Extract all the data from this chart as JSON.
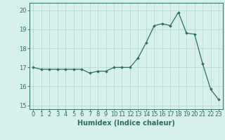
{
  "x": [
    0,
    1,
    2,
    3,
    4,
    5,
    6,
    7,
    8,
    9,
    10,
    11,
    12,
    13,
    14,
    15,
    16,
    17,
    18,
    19,
    20,
    21,
    22,
    23
  ],
  "y": [
    17.0,
    16.9,
    16.9,
    16.9,
    16.9,
    16.9,
    16.9,
    16.7,
    16.8,
    16.8,
    17.0,
    17.0,
    17.0,
    17.5,
    18.3,
    19.2,
    19.3,
    19.2,
    19.9,
    18.8,
    18.75,
    17.2,
    15.85,
    15.3
  ],
  "line_color": "#2d6e63",
  "marker": "D",
  "marker_size": 1.8,
  "bg_color": "#d6f0eb",
  "grid_color": "#b0d8d0",
  "xlabel": "Humidex (Indice chaleur)",
  "xlabel_fontsize": 7,
  "tick_fontsize": 6,
  "ylim": [
    14.8,
    20.4
  ],
  "xlim": [
    -0.5,
    23.5
  ],
  "yticks": [
    15,
    16,
    17,
    18,
    19,
    20
  ],
  "xticks": [
    0,
    1,
    2,
    3,
    4,
    5,
    6,
    7,
    8,
    9,
    10,
    11,
    12,
    13,
    14,
    15,
    16,
    17,
    18,
    19,
    20,
    21,
    22,
    23
  ]
}
